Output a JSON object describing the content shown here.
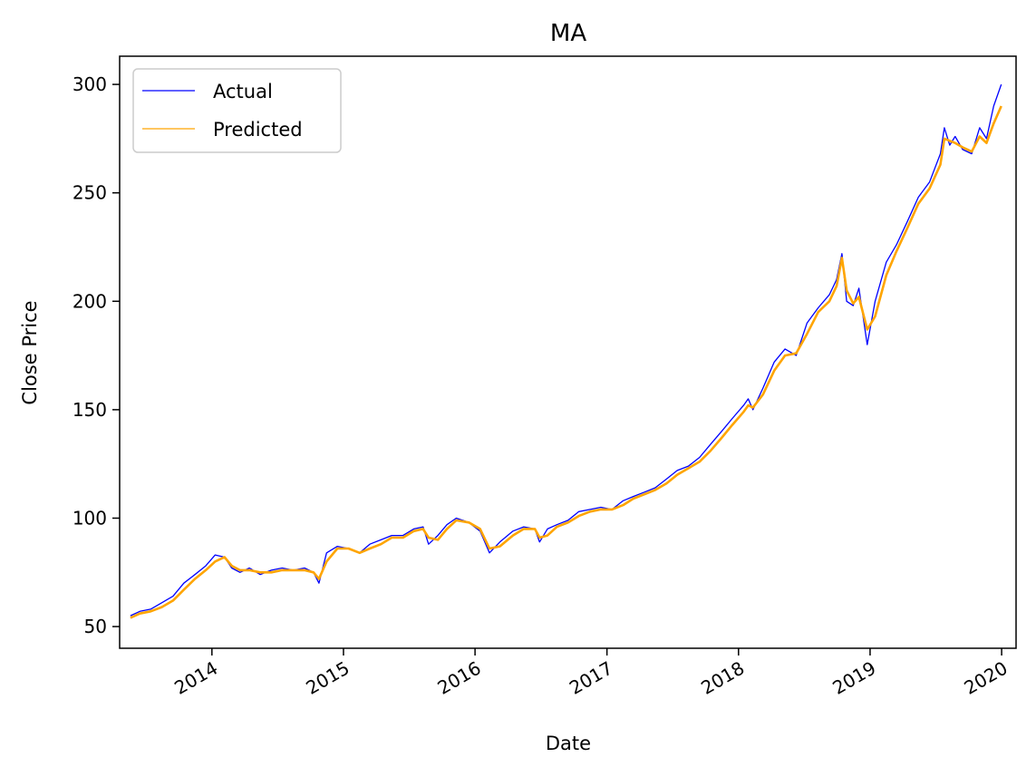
{
  "chart_data": {
    "type": "line",
    "title": "MA",
    "xlabel": "Date",
    "ylabel": "Close Price",
    "xlim": [
      "2013-04-20",
      "2020-02-10"
    ],
    "ylim": [
      40,
      313
    ],
    "xticks": [
      "2014",
      "2015",
      "2016",
      "2017",
      "2018",
      "2019",
      "2020"
    ],
    "xtick_dates": [
      "2014-01-01",
      "2015-01-01",
      "2016-01-01",
      "2017-01-01",
      "2018-01-01",
      "2019-01-01",
      "2020-01-01"
    ],
    "yticks": [
      50,
      100,
      150,
      200,
      250,
      300
    ],
    "grid": false,
    "legend_position": "upper-left",
    "series": [
      {
        "name": "Actual",
        "color": "#0000ff",
        "x": [
          "2013-05-20",
          "2013-06-15",
          "2013-07-15",
          "2013-08-15",
          "2013-09-15",
          "2013-10-15",
          "2013-11-15",
          "2013-12-15",
          "2014-01-10",
          "2014-02-05",
          "2014-02-25",
          "2014-03-20",
          "2014-04-15",
          "2014-05-15",
          "2014-06-15",
          "2014-07-15",
          "2014-08-15",
          "2014-09-15",
          "2014-10-10",
          "2014-10-25",
          "2014-11-15",
          "2014-12-15",
          "2015-01-15",
          "2015-02-15",
          "2015-03-15",
          "2015-04-15",
          "2015-05-15",
          "2015-06-15",
          "2015-07-15",
          "2015-08-10",
          "2015-08-25",
          "2015-09-20",
          "2015-10-15",
          "2015-11-10",
          "2015-12-15",
          "2016-01-15",
          "2016-02-10",
          "2016-03-10",
          "2016-04-15",
          "2016-05-15",
          "2016-06-15",
          "2016-06-28",
          "2016-07-20",
          "2016-08-15",
          "2016-09-15",
          "2016-10-15",
          "2016-11-15",
          "2016-12-15",
          "2017-01-15",
          "2017-02-15",
          "2017-03-15",
          "2017-04-15",
          "2017-05-15",
          "2017-06-15",
          "2017-07-15",
          "2017-08-15",
          "2017-09-15",
          "2017-10-15",
          "2017-11-15",
          "2017-12-15",
          "2018-01-15",
          "2018-01-28",
          "2018-02-10",
          "2018-03-10",
          "2018-04-10",
          "2018-05-10",
          "2018-06-10",
          "2018-07-10",
          "2018-08-10",
          "2018-09-10",
          "2018-09-30",
          "2018-10-15",
          "2018-10-28",
          "2018-11-15",
          "2018-12-01",
          "2018-12-24",
          "2019-01-15",
          "2019-02-15",
          "2019-03-15",
          "2019-04-15",
          "2019-05-15",
          "2019-06-15",
          "2019-07-15",
          "2019-07-26",
          "2019-08-10",
          "2019-08-25",
          "2019-09-15",
          "2019-10-10",
          "2019-11-01",
          "2019-11-20",
          "2019-12-10",
          "2019-12-31"
        ],
        "values": [
          55,
          57,
          58,
          61,
          64,
          70,
          74,
          78,
          83,
          82,
          77,
          75,
          77,
          74,
          76,
          77,
          76,
          77,
          75,
          70,
          84,
          87,
          86,
          84,
          88,
          90,
          92,
          92,
          95,
          96,
          88,
          92,
          97,
          100,
          98,
          94,
          84,
          89,
          94,
          96,
          95,
          89,
          95,
          97,
          99,
          103,
          104,
          105,
          104,
          108,
          110,
          112,
          114,
          118,
          122,
          124,
          128,
          134,
          140,
          146,
          152,
          155,
          150,
          160,
          172,
          178,
          175,
          190,
          197,
          203,
          210,
          222,
          200,
          198,
          206,
          180,
          200,
          218,
          226,
          237,
          248,
          255,
          268,
          280,
          272,
          276,
          270,
          268,
          280,
          275,
          290,
          300
        ]
      },
      {
        "name": "Predicted",
        "color": "#ffa500",
        "x": [
          "2013-05-20",
          "2013-06-15",
          "2013-07-15",
          "2013-08-15",
          "2013-09-15",
          "2013-10-15",
          "2013-11-15",
          "2013-12-15",
          "2014-01-10",
          "2014-02-05",
          "2014-02-25",
          "2014-03-20",
          "2014-04-15",
          "2014-05-15",
          "2014-06-15",
          "2014-07-15",
          "2014-08-15",
          "2014-09-15",
          "2014-10-10",
          "2014-10-25",
          "2014-11-15",
          "2014-12-15",
          "2015-01-15",
          "2015-02-15",
          "2015-03-15",
          "2015-04-15",
          "2015-05-15",
          "2015-06-15",
          "2015-07-15",
          "2015-08-10",
          "2015-08-25",
          "2015-09-20",
          "2015-10-15",
          "2015-11-10",
          "2015-12-15",
          "2016-01-15",
          "2016-02-10",
          "2016-03-10",
          "2016-04-15",
          "2016-05-15",
          "2016-06-15",
          "2016-06-28",
          "2016-07-20",
          "2016-08-15",
          "2016-09-15",
          "2016-10-15",
          "2016-11-15",
          "2016-12-15",
          "2017-01-15",
          "2017-02-15",
          "2017-03-15",
          "2017-04-15",
          "2017-05-15",
          "2017-06-15",
          "2017-07-15",
          "2017-08-15",
          "2017-09-15",
          "2017-10-15",
          "2017-11-15",
          "2017-12-15",
          "2018-01-15",
          "2018-01-28",
          "2018-02-10",
          "2018-03-10",
          "2018-04-10",
          "2018-05-10",
          "2018-06-10",
          "2018-07-10",
          "2018-08-10",
          "2018-09-10",
          "2018-09-30",
          "2018-10-15",
          "2018-10-28",
          "2018-11-15",
          "2018-12-01",
          "2018-12-24",
          "2019-01-15",
          "2019-02-15",
          "2019-03-15",
          "2019-04-15",
          "2019-05-15",
          "2019-06-15",
          "2019-07-15",
          "2019-07-26",
          "2019-08-10",
          "2019-08-25",
          "2019-09-15",
          "2019-10-10",
          "2019-11-01",
          "2019-11-20",
          "2019-12-10",
          "2019-12-31"
        ],
        "values": [
          54,
          56,
          57,
          59,
          62,
          67,
          72,
          76,
          80,
          82,
          78,
          76,
          76,
          75,
          75,
          76,
          76,
          76,
          75,
          72,
          80,
          86,
          86,
          84,
          86,
          88,
          91,
          91,
          94,
          95,
          91,
          90,
          95,
          99,
          98,
          95,
          86,
          87,
          92,
          95,
          95,
          91,
          92,
          96,
          98,
          101,
          103,
          104,
          104,
          106,
          109,
          111,
          113,
          116,
          120,
          123,
          126,
          131,
          137,
          143,
          149,
          152,
          151,
          157,
          168,
          175,
          176,
          185,
          195,
          200,
          207,
          220,
          205,
          199,
          202,
          187,
          193,
          212,
          223,
          234,
          245,
          252,
          263,
          275,
          274,
          273,
          271,
          269,
          276,
          273,
          282,
          290
        ]
      }
    ]
  }
}
